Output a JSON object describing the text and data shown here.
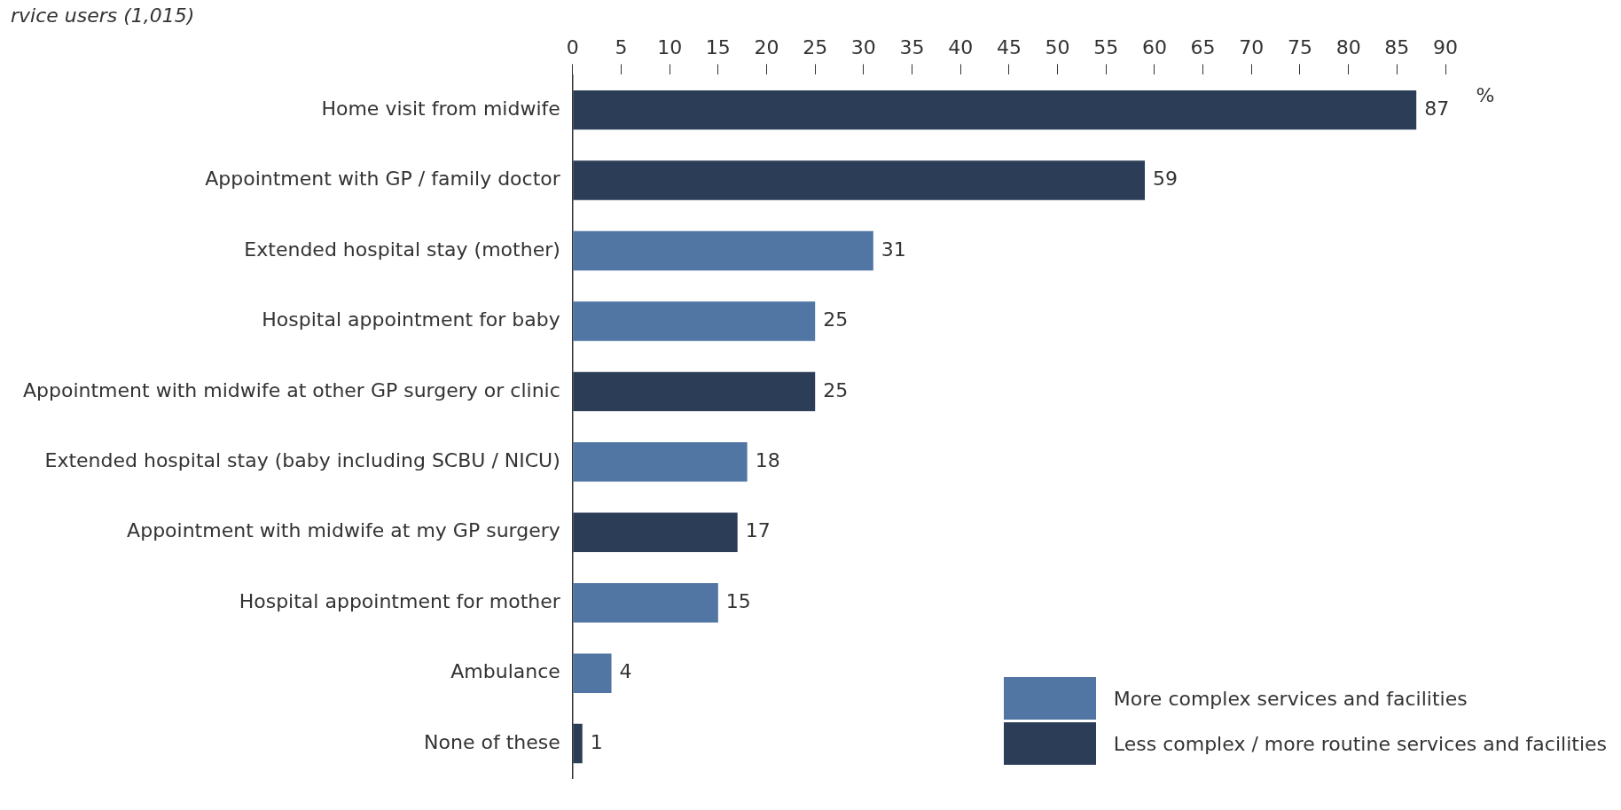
{
  "chart_data": {
    "type": "bar",
    "orientation": "horizontal",
    "stacked": true,
    "subtitle": "rvice users (1,015)",
    "xlabel": "%",
    "categories": [
      "Home visit from midwife",
      "Appointment with GP / family doctor",
      "Extended hospital stay (mother)",
      "Hospital appointment for baby",
      "Appointment with midwife at other GP surgery or clinic",
      "Extended hospital stay (baby including SCBU / NICU)",
      "Appointment with midwife at my GP surgery",
      "Hospital appointment for mother",
      "Ambulance",
      "None of these"
    ],
    "series": [
      {
        "name": "More complex services and facilities",
        "color": "#5176a4",
        "values": [
          null,
          null,
          31,
          25,
          null,
          18,
          null,
          15,
          4,
          null
        ]
      },
      {
        "name": "Less complex / more routine services and facilities",
        "color": "#2b3d57",
        "values": [
          87,
          59,
          null,
          null,
          25,
          null,
          17,
          null,
          null,
          1
        ]
      }
    ],
    "xlim": [
      0,
      90
    ],
    "xticks": [
      0,
      5,
      10,
      15,
      20,
      25,
      30,
      35,
      40,
      45,
      50,
      55,
      60,
      65,
      70,
      75,
      80,
      85,
      90
    ],
    "data_labels": true,
    "grid": false,
    "legend": "bottom right"
  }
}
